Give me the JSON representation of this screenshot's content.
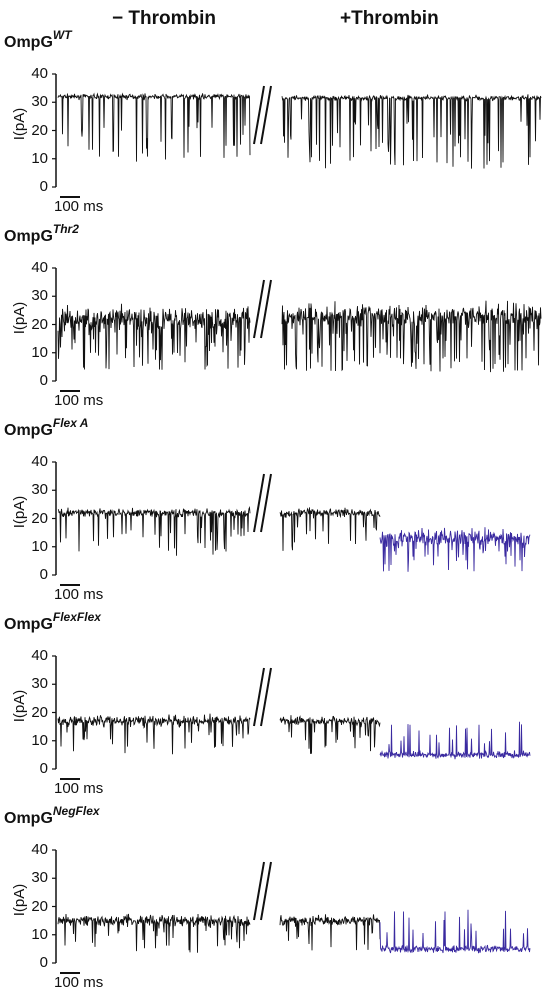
{
  "header": {
    "left": "− Thrombin",
    "right": "+Thrombin"
  },
  "colors": {
    "trace": "#111111",
    "trace_low": "#3a2aa0"
  },
  "chart_data": [
    {
      "type": "line",
      "title_base": "OmpG",
      "title_sup": "WT",
      "ylabel": "I(pA)",
      "ylim": [
        0,
        40
      ],
      "yticks": [
        "40",
        "30",
        "20",
        "10",
        "0"
      ],
      "scalebar_label": "100 ms",
      "series": [
        {
          "condition": "− Thrombin",
          "baseline": 32,
          "noise": 0.8,
          "spike_depth": 24,
          "spike_rate": 0.1,
          "segment": "left"
        },
        {
          "condition": "+Thrombin",
          "baseline": 31.5,
          "noise": 0.8,
          "spike_depth": 25,
          "spike_rate": 0.12,
          "segment": "right"
        }
      ]
    },
    {
      "type": "line",
      "title_base": "OmpG",
      "title_sup": "Thr2",
      "ylabel": "I(pA)",
      "ylim": [
        0,
        40
      ],
      "yticks": [
        "40",
        "30",
        "20",
        "10",
        "0"
      ],
      "scalebar_label": "100 ms",
      "series": [
        {
          "condition": "− Thrombin",
          "baseline": 22,
          "noise": 4,
          "spike_depth": 18,
          "spike_rate": 0.16,
          "segment": "left"
        },
        {
          "condition": "+Thrombin",
          "baseline": 23,
          "noise": 4,
          "spike_depth": 20,
          "spike_rate": 0.16,
          "segment": "right"
        }
      ]
    },
    {
      "type": "line",
      "title_base": "OmpG",
      "title_sup": "Flex A",
      "ylabel": "I(pA)",
      "ylim": [
        0,
        40
      ],
      "yticks": [
        "40",
        "30",
        "20",
        "10",
        "0"
      ],
      "scalebar_label": "100 ms",
      "series": [
        {
          "condition": "− Thrombin",
          "baseline": 22,
          "noise": 1.5,
          "spike_depth": 16,
          "spike_rate": 0.09,
          "segment": "left"
        },
        {
          "condition": "+Thrombin",
          "baseline": 22,
          "noise": 1.5,
          "spike_depth": 14,
          "spike_rate": 0.09,
          "segment": "right-a"
        },
        {
          "condition": "+Thrombin",
          "baseline": 13,
          "noise": 3,
          "spike_depth": 12,
          "spike_rate": 0.1,
          "segment": "right-b",
          "low_state": true
        }
      ]
    },
    {
      "type": "line",
      "title_base": "OmpG",
      "title_sup": "FlexFlex",
      "ylabel": "I(pA)",
      "ylim": [
        0,
        40
      ],
      "yticks": [
        "40",
        "30",
        "20",
        "10",
        "0"
      ],
      "scalebar_label": "100 ms",
      "series": [
        {
          "condition": "− Thrombin",
          "baseline": 17,
          "noise": 1.8,
          "spike_depth": 12,
          "spike_rate": 0.09,
          "segment": "left"
        },
        {
          "condition": "+Thrombin",
          "baseline": 17,
          "noise": 1.5,
          "spike_depth": 12,
          "spike_rate": 0.07,
          "segment": "right-a"
        },
        {
          "condition": "+Thrombin",
          "baseline": 5,
          "noise": 1.2,
          "spike_depth": -12,
          "spike_rate": 0.06,
          "segment": "right-b",
          "low_state": true
        }
      ]
    },
    {
      "type": "line",
      "title_base": "OmpG",
      "title_sup": "NegFlex",
      "ylabel": "I(pA)",
      "ylim": [
        0,
        40
      ],
      "yticks": [
        "40",
        "30",
        "20",
        "10",
        "0"
      ],
      "scalebar_label": "100 ms",
      "series": [
        {
          "condition": "− Thrombin",
          "baseline": 15,
          "noise": 2,
          "spike_depth": 12,
          "spike_rate": 0.1,
          "segment": "left"
        },
        {
          "condition": "+Thrombin",
          "baseline": 15,
          "noise": 1.8,
          "spike_depth": 12,
          "spike_rate": 0.08,
          "segment": "right-a"
        },
        {
          "condition": "+Thrombin",
          "baseline": 5,
          "noise": 1.3,
          "spike_depth": -14,
          "spike_rate": 0.06,
          "segment": "right-b",
          "low_state": true
        }
      ]
    }
  ]
}
